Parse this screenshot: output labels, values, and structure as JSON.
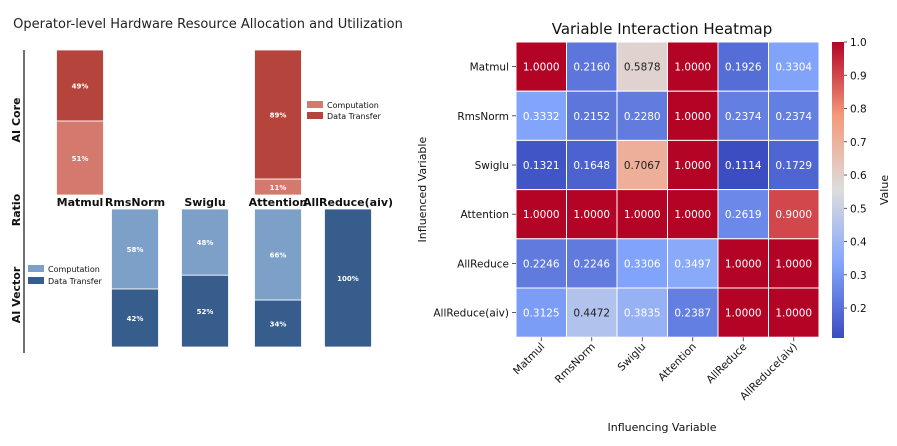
{
  "chart_data": [
    {
      "type": "bar",
      "stacked": true,
      "title": "Operator-level Hardware Resource Allocation and Utilization",
      "ylabel": "Ratio",
      "groups": [
        "AI Core",
        "AI Vector"
      ],
      "categories": [
        "Matmul",
        "RmsNorm",
        "Swiglu",
        "Attention",
        "AllReduce(aiv)"
      ],
      "series_names": [
        "Computation",
        "Data Transfer"
      ],
      "ai_core": {
        "computation": [
          51,
          null,
          null,
          11,
          null
        ],
        "data_transfer": [
          49,
          null,
          null,
          89,
          null
        ],
        "computation_labels": [
          "51%",
          "",
          "",
          "11%",
          ""
        ],
        "data_transfer_labels": [
          "49%",
          "",
          "",
          "89%",
          ""
        ],
        "colors": {
          "computation": "#d5786d",
          "data_transfer": "#b5443c"
        }
      },
      "ai_vector": {
        "computation": [
          null,
          58,
          48,
          66,
          0
        ],
        "data_transfer": [
          null,
          42,
          52,
          34,
          100
        ],
        "computation_labels": [
          "",
          "58%",
          "48%",
          "66%",
          ""
        ],
        "data_transfer_labels": [
          "",
          "42%",
          "52%",
          "34%",
          "100%"
        ],
        "colors": {
          "computation": "#7da0c8",
          "data_transfer": "#365d8c"
        }
      },
      "legend_placement": "right of bars"
    },
    {
      "type": "heatmap",
      "title": "Variable Interaction Heatmap",
      "xlabel": "Influencing Variable",
      "ylabel": "Influenced Variable",
      "x": [
        "Matmul",
        "RmsNorm",
        "Swiglu",
        "Attention",
        "AllReduce",
        "AllReduce(aiv)"
      ],
      "y": [
        "Matmul",
        "RmsNorm",
        "Swiglu",
        "Attention",
        "AllReduce",
        "AllReduce(aiv)"
      ],
      "values": [
        [
          1.0,
          0.216,
          0.5878,
          1.0,
          0.1926,
          0.3304
        ],
        [
          0.3332,
          0.2152,
          0.228,
          1.0,
          0.2374,
          0.2374
        ],
        [
          0.1321,
          0.1648,
          0.7067,
          1.0,
          0.1114,
          0.1729
        ],
        [
          1.0,
          1.0,
          1.0,
          1.0,
          0.2619,
          0.9
        ],
        [
          0.2246,
          0.2246,
          0.3306,
          0.3497,
          1.0,
          1.0
        ],
        [
          0.3125,
          0.4472,
          0.3835,
          0.2387,
          1.0,
          1.0
        ]
      ],
      "colorbar": {
        "label": "Value",
        "ticks": [
          0.2,
          0.3,
          0.4,
          0.5,
          0.6,
          0.7,
          0.8,
          0.9,
          1.0
        ],
        "tick_labels": [
          "0.2",
          "0.3",
          "0.4",
          "0.5",
          "0.6",
          "0.7",
          "0.8",
          "0.9",
          "1.0"
        ],
        "range": [
          0.11,
          1.0
        ],
        "colormap": "coolwarm"
      }
    }
  ]
}
